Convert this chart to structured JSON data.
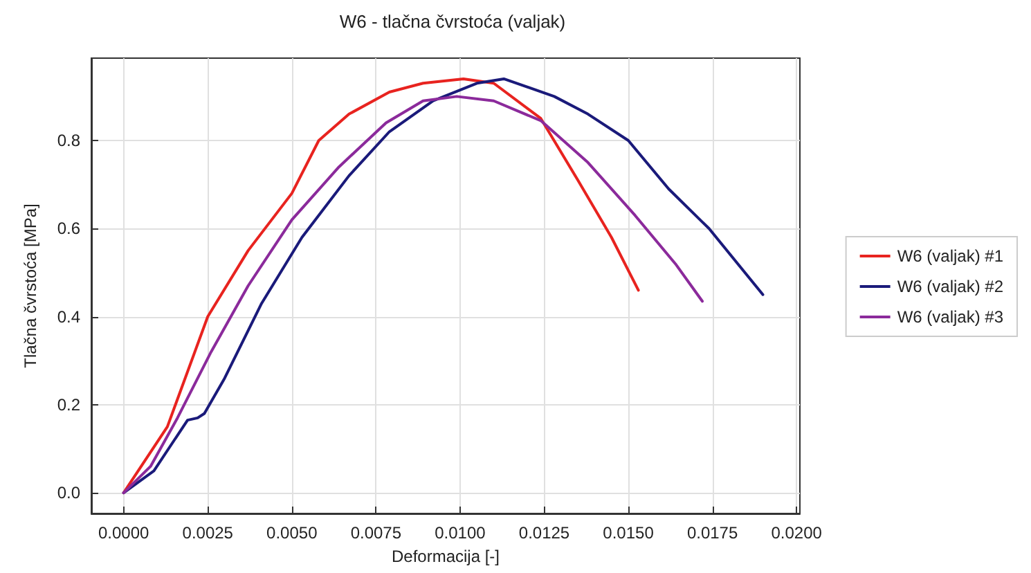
{
  "chart_data": {
    "type": "line",
    "title": "W6 - tlačna čvrstoća (valjak)",
    "xlabel": "Deformacija [-]",
    "ylabel": "Tlačna čvrstoća [MPa]",
    "xlim": [
      -0.00096,
      0.0201
    ],
    "ylim": [
      -0.047,
      0.987
    ],
    "xticks": [
      {
        "value": 0,
        "label": "0.0000"
      },
      {
        "value": 0.0025,
        "label": "0.0025"
      },
      {
        "value": 0.005,
        "label": "0.0050"
      },
      {
        "value": 0.0075,
        "label": "0.0075"
      },
      {
        "value": 0.01,
        "label": "0.0100"
      },
      {
        "value": 0.0125,
        "label": "0.0125"
      },
      {
        "value": 0.015,
        "label": "0.0150"
      },
      {
        "value": 0.0175,
        "label": "0.0175"
      },
      {
        "value": 0.02,
        "label": "0.0200"
      }
    ],
    "yticks": [
      {
        "value": 0,
        "label": "0.0"
      },
      {
        "value": 0.2,
        "label": "0.2"
      },
      {
        "value": 0.4,
        "label": "0.4"
      },
      {
        "value": 0.6,
        "label": "0.6"
      },
      {
        "value": 0.8,
        "label": "0.8"
      }
    ],
    "grid": true,
    "legend": "right",
    "marker": "none",
    "line_style": "solid",
    "series": [
      {
        "name": "W6 (valjak) #1",
        "color": "#e8231f",
        "x": [
          0,
          0.0013,
          0.0025,
          0.0037,
          0.005,
          0.0058,
          0.0067,
          0.0079,
          0.0089,
          0.0101,
          0.011,
          0.0124,
          0.0135,
          0.0145,
          0.0153
        ],
        "values": [
          0,
          0.15,
          0.4,
          0.55,
          0.68,
          0.8,
          0.86,
          0.91,
          0.93,
          0.94,
          0.93,
          0.85,
          0.71,
          0.58,
          0.46
        ]
      },
      {
        "name": "W6 (valjak) #2",
        "color": "#1a1a7a",
        "x": [
          0,
          0.0009,
          0.0019,
          0.0022,
          0.0024,
          0.003,
          0.0041,
          0.0053,
          0.0067,
          0.0079,
          0.0092,
          0.0105,
          0.0113,
          0.0128,
          0.0138,
          0.015,
          0.0162,
          0.0174,
          0.019
        ],
        "values": [
          0,
          0.05,
          0.165,
          0.17,
          0.18,
          0.26,
          0.43,
          0.58,
          0.72,
          0.82,
          0.89,
          0.93,
          0.94,
          0.9,
          0.86,
          0.8,
          0.69,
          0.6,
          0.45
        ]
      },
      {
        "name": "W6 (valjak) #3",
        "color": "#8b2a9b",
        "x": [
          0,
          0.0008,
          0.0016,
          0.0026,
          0.0037,
          0.005,
          0.0064,
          0.0078,
          0.0089,
          0.0099,
          0.011,
          0.0124,
          0.0138,
          0.0152,
          0.0164,
          0.0172
        ],
        "values": [
          0,
          0.06,
          0.17,
          0.32,
          0.47,
          0.62,
          0.74,
          0.84,
          0.89,
          0.9,
          0.89,
          0.845,
          0.75,
          0.63,
          0.52,
          0.435
        ]
      }
    ]
  }
}
